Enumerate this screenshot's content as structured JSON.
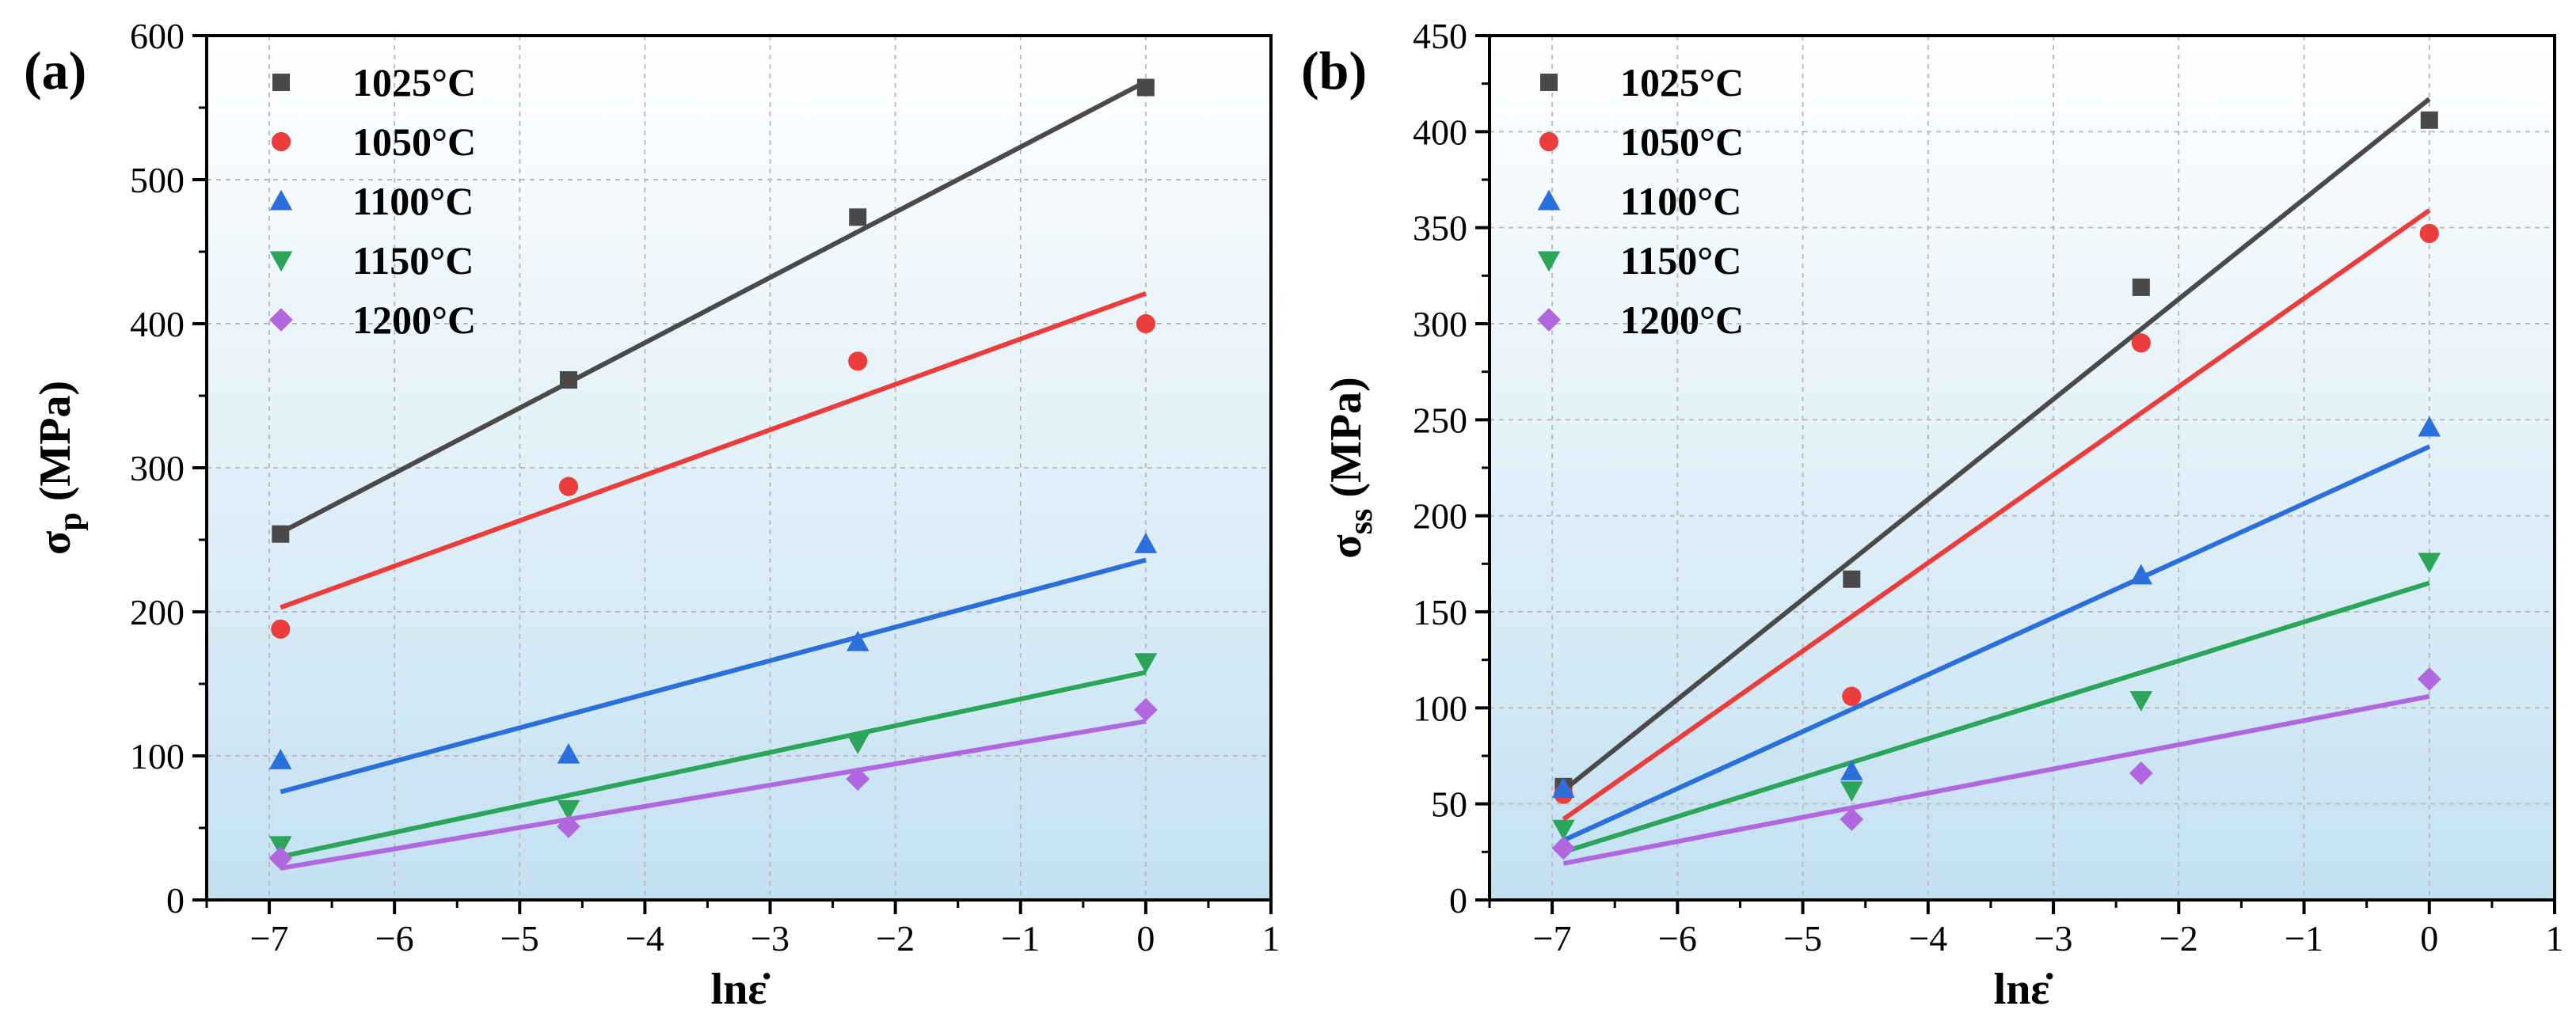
{
  "chart_data": [
    {
      "type": "scatter",
      "panel_label": "(a)",
      "xlabel": "lnε̇",
      "ylabel_symbol": "σ",
      "ylabel_sub": "p",
      "ylabel_unit": " (MPa)",
      "xlim": [
        -7.5,
        1
      ],
      "ylim": [
        0,
        600
      ],
      "xticks": [
        -7,
        -6,
        -5,
        -4,
        -3,
        -2,
        -1,
        0,
        1
      ],
      "yticks": [
        0,
        100,
        200,
        300,
        400,
        500,
        600
      ],
      "grid": true,
      "legend_position": "top-left",
      "x": [
        -6.91,
        -4.61,
        -2.3,
        0
      ],
      "series": [
        {
          "name": "1025°C",
          "marker": "square",
          "color": "#4a4a4a",
          "values": [
            254,
            361,
            474,
            564
          ],
          "fit": [
            255,
            568
          ]
        },
        {
          "name": "1050°C",
          "marker": "circle",
          "color": "#ec3d3d",
          "values": [
            188,
            287,
            374,
            400
          ],
          "fit": [
            203,
            421
          ]
        },
        {
          "name": "1100°C",
          "marker": "triangle-up",
          "color": "#2a6fdb",
          "values": [
            97,
            101,
            179,
            247
          ],
          "fit": [
            75,
            236
          ]
        },
        {
          "name": "1150°C",
          "marker": "triangle-down",
          "color": "#2aa55a",
          "values": [
            38,
            63,
            109,
            165
          ],
          "fit": [
            30,
            158
          ]
        },
        {
          "name": "1200°C",
          "marker": "diamond",
          "color": "#b067e0",
          "values": [
            29,
            51,
            84,
            132
          ],
          "fit": [
            22,
            124
          ]
        }
      ]
    },
    {
      "type": "scatter",
      "panel_label": "(b)",
      "xlabel": "lnε̇",
      "ylabel_symbol": "σ",
      "ylabel_sub": "ss",
      "ylabel_unit": " (MPa)",
      "xlim": [
        -7.5,
        1
      ],
      "ylim": [
        0,
        450
      ],
      "xticks": [
        -7,
        -6,
        -5,
        -4,
        -3,
        -2,
        -1,
        0,
        1
      ],
      "yticks": [
        0,
        50,
        100,
        150,
        200,
        250,
        300,
        350,
        400,
        450
      ],
      "grid": true,
      "legend_position": "top-left",
      "x": [
        -6.91,
        -4.61,
        -2.3,
        0
      ],
      "series": [
        {
          "name": "1025°C",
          "marker": "square",
          "color": "#4a4a4a",
          "values": [
            59,
            167,
            319,
            406
          ],
          "fit": [
            57,
            417
          ]
        },
        {
          "name": "1050°C",
          "marker": "circle",
          "color": "#ec3d3d",
          "values": [
            55,
            106,
            290,
            347
          ],
          "fit": [
            42,
            359
          ]
        },
        {
          "name": "1100°C",
          "marker": "triangle-up",
          "color": "#2a6fdb",
          "values": [
            58,
            67,
            169,
            246
          ],
          "fit": [
            31,
            236
          ]
        },
        {
          "name": "1150°C",
          "marker": "triangle-down",
          "color": "#2aa55a",
          "values": [
            37,
            57,
            104,
            176
          ],
          "fit": [
            25,
            165
          ]
        },
        {
          "name": "1200°C",
          "marker": "diamond",
          "color": "#b067e0",
          "values": [
            27,
            42,
            66,
            115
          ],
          "fit": [
            19,
            106
          ]
        }
      ]
    }
  ]
}
